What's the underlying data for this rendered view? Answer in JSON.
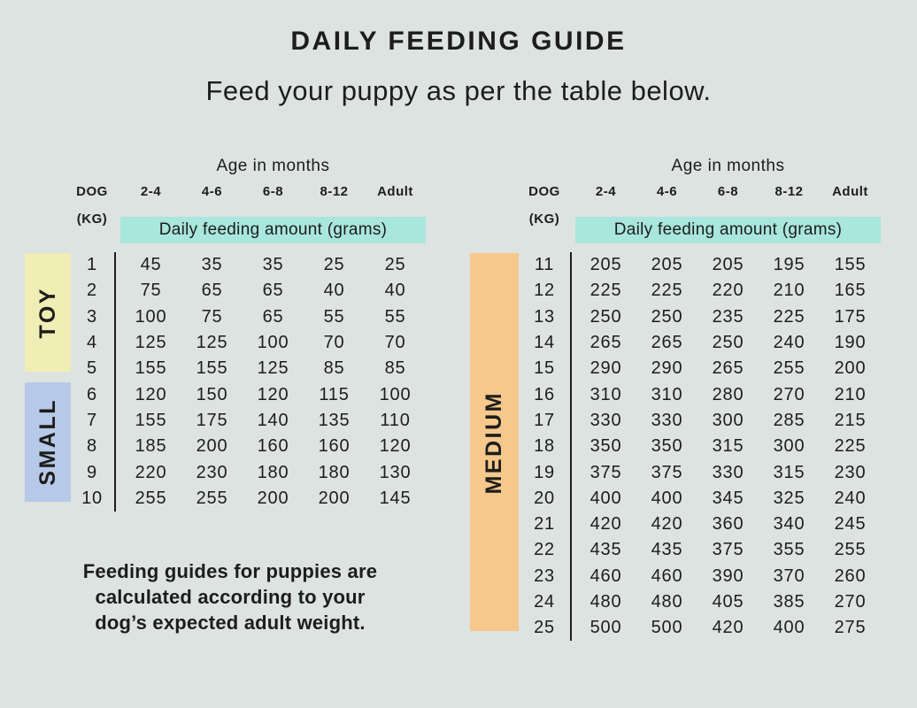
{
  "page": {
    "title": "DAILY FEEDING GUIDE",
    "subtitle": "Feed your puppy as per the table below.",
    "footnote_lines": [
      "Feeding guides for puppies are",
      "calculated according to your",
      "dog’s expected adult weight."
    ]
  },
  "colors": {
    "background": "#dde3e1",
    "ink": "#1d1d1b",
    "highlight_teal": "#a9e6dd",
    "toy": "#f0edb5",
    "small": "#b6c9e8",
    "medium": "#f6c88c"
  },
  "chart_data": [
    {
      "type": "table",
      "title": "Age in months",
      "dog_label": "DOG",
      "kg_label": "(KG)",
      "age_columns": [
        "2-4",
        "4-6",
        "6-8",
        "8-12",
        "Adult"
      ],
      "band_label": "Daily feeding amount (grams)",
      "units": "grams per day",
      "groups": [
        {
          "label": "TOY",
          "color_key": "toy",
          "rows": [
            {
              "kg": 1,
              "amounts": [
                45,
                35,
                35,
                25,
                25
              ]
            },
            {
              "kg": 2,
              "amounts": [
                75,
                65,
                65,
                40,
                40
              ]
            },
            {
              "kg": 3,
              "amounts": [
                100,
                75,
                65,
                55,
                55
              ]
            },
            {
              "kg": 4,
              "amounts": [
                125,
                125,
                100,
                70,
                70
              ]
            },
            {
              "kg": 5,
              "amounts": [
                155,
                155,
                125,
                85,
                85
              ]
            }
          ]
        },
        {
          "label": "SMALL",
          "color_key": "small",
          "rows": [
            {
              "kg": 6,
              "amounts": [
                120,
                150,
                120,
                115,
                100
              ]
            },
            {
              "kg": 7,
              "amounts": [
                155,
                175,
                140,
                135,
                110
              ]
            },
            {
              "kg": 8,
              "amounts": [
                185,
                200,
                160,
                160,
                120
              ]
            },
            {
              "kg": 9,
              "amounts": [
                220,
                230,
                180,
                180,
                130
              ]
            },
            {
              "kg": 10,
              "amounts": [
                255,
                255,
                200,
                200,
                145
              ]
            }
          ]
        }
      ]
    },
    {
      "type": "table",
      "title": "Age in months",
      "dog_label": "DOG",
      "kg_label": "(KG)",
      "age_columns": [
        "2-4",
        "4-6",
        "6-8",
        "8-12",
        "Adult"
      ],
      "band_label": "Daily feeding amount (grams)",
      "units": "grams per day",
      "groups": [
        {
          "label": "MEDIUM",
          "color_key": "medium",
          "rows": [
            {
              "kg": 11,
              "amounts": [
                205,
                205,
                205,
                195,
                155
              ]
            },
            {
              "kg": 12,
              "amounts": [
                225,
                225,
                220,
                210,
                165
              ]
            },
            {
              "kg": 13,
              "amounts": [
                250,
                250,
                235,
                225,
                175
              ]
            },
            {
              "kg": 14,
              "amounts": [
                265,
                265,
                250,
                240,
                190
              ]
            },
            {
              "kg": 15,
              "amounts": [
                290,
                290,
                265,
                255,
                200
              ]
            },
            {
              "kg": 16,
              "amounts": [
                310,
                310,
                280,
                270,
                210
              ]
            },
            {
              "kg": 17,
              "amounts": [
                330,
                330,
                300,
                285,
                215
              ]
            },
            {
              "kg": 18,
              "amounts": [
                350,
                350,
                315,
                300,
                225
              ]
            },
            {
              "kg": 19,
              "amounts": [
                375,
                375,
                330,
                315,
                230
              ]
            },
            {
              "kg": 20,
              "amounts": [
                400,
                400,
                345,
                325,
                240
              ]
            },
            {
              "kg": 21,
              "amounts": [
                420,
                420,
                360,
                340,
                245
              ]
            },
            {
              "kg": 22,
              "amounts": [
                435,
                435,
                375,
                355,
                255
              ]
            },
            {
              "kg": 23,
              "amounts": [
                460,
                460,
                390,
                370,
                260
              ]
            },
            {
              "kg": 24,
              "amounts": [
                480,
                480,
                405,
                385,
                270
              ]
            },
            {
              "kg": 25,
              "amounts": [
                500,
                500,
                420,
                400,
                275
              ]
            }
          ]
        }
      ]
    }
  ]
}
